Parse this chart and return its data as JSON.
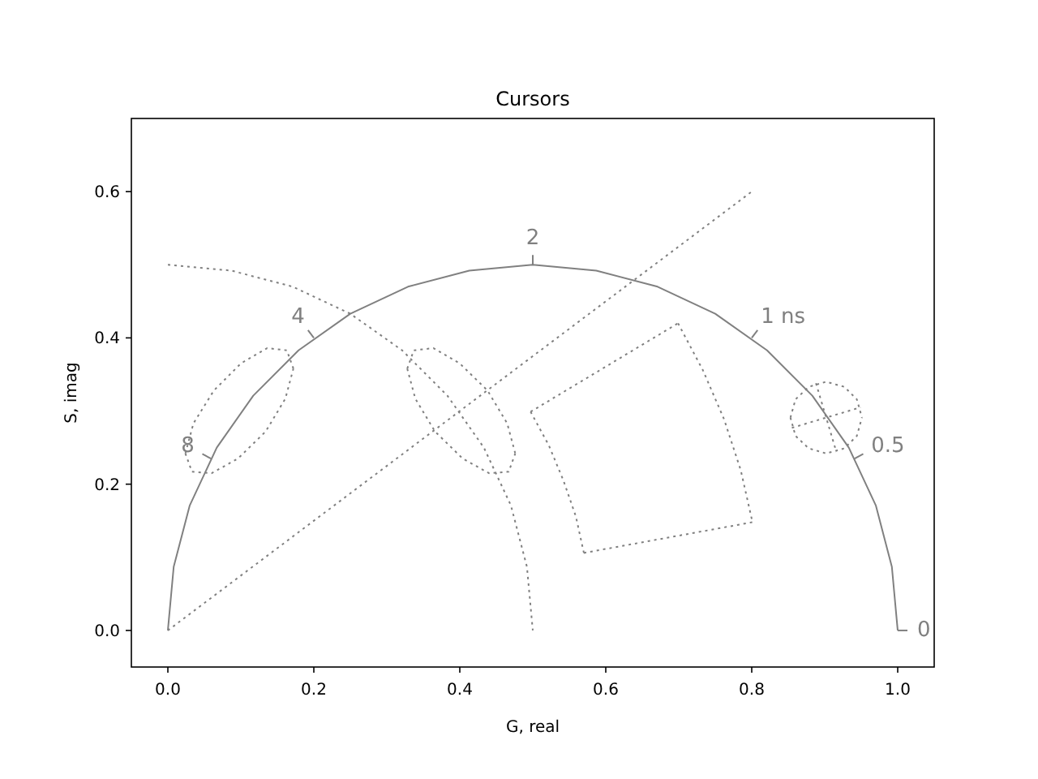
{
  "chart_data": {
    "type": "line",
    "title": "Cursors",
    "xlabel": "G, real",
    "ylabel": "S, imag",
    "xlim": [
      -0.05,
      1.05
    ],
    "ylim": [
      -0.05,
      0.7
    ],
    "xticks": [
      {
        "value": 0,
        "label": "0.0"
      },
      {
        "value": 0.2,
        "label": "0.2"
      },
      {
        "value": 0.4,
        "label": "0.4"
      },
      {
        "value": 0.6,
        "label": "0.6"
      },
      {
        "value": 0.8,
        "label": "0.8"
      },
      {
        "value": 1,
        "label": "1.0"
      }
    ],
    "yticks": [
      {
        "value": 0,
        "label": "0.0"
      },
      {
        "value": 0.2,
        "label": "0.2"
      },
      {
        "value": 0.4,
        "label": "0.4"
      },
      {
        "value": 0.6,
        "label": "0.6"
      }
    ],
    "grid": false,
    "series": [
      {
        "color": "#808080",
        "line_style": "solid",
        "x": [
          0,
          0.008,
          0.03,
          0.067,
          0.117,
          0.179,
          0.25,
          0.329,
          0.413,
          0.5,
          0.587,
          0.671,
          0.75,
          0.821,
          0.883,
          0.933,
          0.97,
          0.992,
          1
        ],
        "values": [
          0,
          0.087,
          0.171,
          0.25,
          0.321,
          0.383,
          0.433,
          0.47,
          0.492,
          0.5,
          0.492,
          0.47,
          0.433,
          0.383,
          0.321,
          0.25,
          0.171,
          0.087,
          0
        ]
      },
      {
        "color": "#808080",
        "line_style": "dotted",
        "x": [
          0,
          0.087,
          0.171,
          0.25,
          0.321,
          0.383,
          0.433,
          0.47,
          0.492,
          0.5
        ],
        "values": [
          0.5,
          0.492,
          0.47,
          0.433,
          0.383,
          0.321,
          0.25,
          0.171,
          0.087,
          0
        ]
      },
      {
        "color": "#808080",
        "line_style": "dotted",
        "x": [
          0,
          0.8
        ],
        "values": [
          0,
          0.6
        ]
      },
      {
        "color": "#808080",
        "line_style": "dotted",
        "x": [
          0.497,
          0.699
        ],
        "values": [
          0.299,
          0.42
        ]
      },
      {
        "color": "#808080",
        "line_style": "dotted",
        "x": [
          0.699,
          0.733,
          0.762,
          0.785,
          0.801
        ],
        "values": [
          0.42,
          0.356,
          0.289,
          0.219,
          0.148
        ]
      },
      {
        "color": "#808080",
        "line_style": "dotted",
        "x": [
          0.57,
          0.801
        ],
        "values": [
          0.106,
          0.148
        ]
      },
      {
        "color": "#808080",
        "line_style": "dotted",
        "x": [
          0.497,
          0.522,
          0.542,
          0.559,
          0.57
        ],
        "values": [
          0.299,
          0.253,
          0.205,
          0.156,
          0.106
        ]
      },
      {
        "color": "#808080",
        "line_style": "dotted",
        "x": [
          0.024,
          0.035,
          0.063,
          0.1,
          0.136,
          0.163,
          0.172
        ],
        "values": [
          0.242,
          0.283,
          0.328,
          0.365,
          0.386,
          0.383,
          0.358
        ]
      },
      {
        "color": "#808080",
        "line_style": "dotted",
        "x": [
          0.024,
          0.033,
          0.06,
          0.096,
          0.134,
          0.161,
          0.172
        ],
        "values": [
          0.242,
          0.217,
          0.215,
          0.235,
          0.272,
          0.317,
          0.358
        ]
      },
      {
        "color": "#808080",
        "line_style": "dotted",
        "x": [
          0.328,
          0.337,
          0.364,
          0.4,
          0.438,
          0.465,
          0.476
        ],
        "values": [
          0.358,
          0.383,
          0.386,
          0.365,
          0.328,
          0.283,
          0.242
        ]
      },
      {
        "color": "#808080",
        "line_style": "dotted",
        "x": [
          0.328,
          0.339,
          0.366,
          0.404,
          0.44,
          0.467,
          0.476
        ],
        "values": [
          0.358,
          0.317,
          0.272,
          0.235,
          0.215,
          0.217,
          0.242
        ]
      },
      {
        "color": "#808080",
        "line_style": "dotted",
        "x": [
          0.853,
          0.86,
          0.878,
          0.902,
          0.927,
          0.944,
          0.951
        ],
        "values": [
          0.291,
          0.316,
          0.333,
          0.34,
          0.333,
          0.316,
          0.291
        ]
      },
      {
        "color": "#808080",
        "line_style": "dotted",
        "x": [
          0.853,
          0.86,
          0.878,
          0.902,
          0.927,
          0.944,
          0.951
        ],
        "values": [
          0.291,
          0.266,
          0.249,
          0.242,
          0.249,
          0.266,
          0.291
        ]
      },
      {
        "color": "#808080",
        "line_style": "dotted",
        "x": [
          0.855,
          0.949
        ],
        "values": [
          0.277,
          0.305
        ]
      },
      {
        "color": "#808080",
        "line_style": "dotted",
        "x": [
          0.888,
          0.916
        ],
        "values": [
          0.338,
          0.244
        ]
      }
    ],
    "annotations": [
      {
        "text": "0",
        "x": 1,
        "y": 0
      },
      {
        "text": "0.5",
        "x": 0.941,
        "y": 0.235
      },
      {
        "text": "1 ns",
        "x": 0.8,
        "y": 0.4
      },
      {
        "text": "2",
        "x": 0.5,
        "y": 0.5
      },
      {
        "text": "4",
        "x": 0.2,
        "y": 0.4
      },
      {
        "text": "8",
        "x": 0.059,
        "y": 0.235
      }
    ]
  }
}
